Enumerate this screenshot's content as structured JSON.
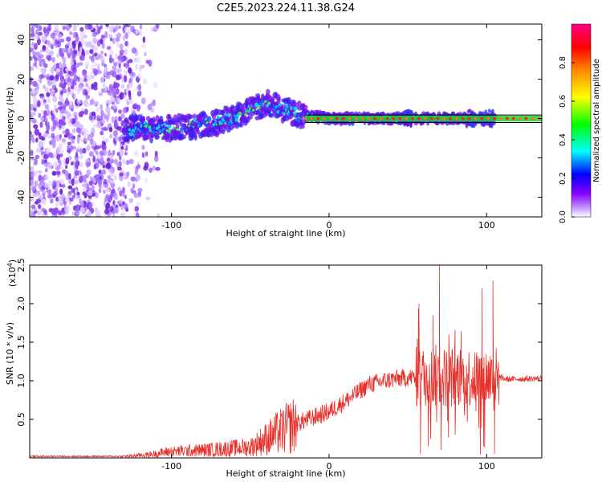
{
  "figure": {
    "title": "C2E5.2023.224.11.38.G24"
  },
  "chart_data": [
    {
      "type": "heatmap",
      "xlabel": "Height of straight line (km)",
      "ylabel": "Frequency (Hz)",
      "xlim": [
        -190,
        135
      ],
      "ylim": [
        -50,
        48
      ],
      "x_ticks": [
        "-100",
        "0",
        "100"
      ],
      "x_tick_values": [
        -100,
        0,
        100
      ],
      "y_ticks": [
        "-40",
        "-20",
        "0",
        "20",
        "40"
      ],
      "y_tick_values": [
        -40,
        -20,
        0,
        20,
        40
      ],
      "colorbar": {
        "label": "Normalized spectral amplitude",
        "range": [
          0,
          1
        ],
        "ticks": [
          "0.0",
          "0.2",
          "0.4",
          "0.6",
          "0.8"
        ],
        "tick_values": [
          0.0,
          0.2,
          0.4,
          0.6,
          0.8
        ],
        "colors": [
          "#ffffff",
          "#8800ff",
          "#0000ff",
          "#00ffff",
          "#00ff00",
          "#ffff00",
          "#ff8800",
          "#ff0000",
          "#ff0088"
        ]
      },
      "features": {
        "noise_region_x": [
          -190,
          -120
        ],
        "ridge_points": [
          [
            -130,
            -5
          ],
          [
            -100,
            -5
          ],
          [
            -70,
            -2
          ],
          [
            -40,
            8
          ],
          [
            -20,
            2
          ],
          [
            0,
            0
          ],
          [
            50,
            0
          ],
          [
            100,
            0
          ],
          [
            135,
            0
          ]
        ],
        "green_line_y_range": [
          -1.5,
          1.5
        ],
        "black_line_y": [
          1.8,
          -2.0
        ],
        "strong_signal_x": [
          -15,
          135
        ]
      }
    },
    {
      "type": "line",
      "xlabel": "Height of straight line (km)",
      "ylabel": "SNR (10 * v/v)",
      "y_multiplier": "(x10",
      "y_multiplier_exp": "4",
      "y_multiplier_close": ")",
      "xlim": [
        -190,
        135
      ],
      "ylim": [
        0,
        2.5
      ],
      "x_ticks": [
        "-100",
        "0",
        "100"
      ],
      "x_tick_values": [
        -100,
        0,
        100
      ],
      "y_ticks": [
        "0.5",
        "1.0",
        "1.5",
        "2.0",
        "2.5"
      ],
      "y_tick_values": [
        0.5,
        1.0,
        1.5,
        2.0,
        2.5
      ],
      "color": "#e8302a",
      "envelope": [
        {
          "x": -190,
          "y": 0.02
        },
        {
          "x": -130,
          "y": 0.02
        },
        {
          "x": -115,
          "y": 0.04
        },
        {
          "x": -102,
          "y": 0.08
        },
        {
          "x": -80,
          "y": 0.1
        },
        {
          "x": -50,
          "y": 0.14
        },
        {
          "x": -35,
          "y": 0.3
        },
        {
          "x": -20,
          "y": 0.45
        },
        {
          "x": 0,
          "y": 0.6
        },
        {
          "x": 15,
          "y": 0.8
        },
        {
          "x": 25,
          "y": 0.95
        },
        {
          "x": 40,
          "y": 1.02
        },
        {
          "x": 55,
          "y": 1.05
        },
        {
          "x": 85,
          "y": 1.05
        },
        {
          "x": 108,
          "y": 1.05
        },
        {
          "x": 112,
          "y": 1.02
        },
        {
          "x": 135,
          "y": 1.03
        }
      ],
      "spikes": [
        {
          "x": 57,
          "y": 2.0
        },
        {
          "x": 58,
          "y": 0.05
        },
        {
          "x": 66,
          "y": 1.85
        },
        {
          "x": 70,
          "y": 2.5
        },
        {
          "x": 71,
          "y": 0.1
        },
        {
          "x": 76,
          "y": 1.6
        },
        {
          "x": 80,
          "y": 0.3
        },
        {
          "x": 83,
          "y": 1.2
        },
        {
          "x": 97,
          "y": 2.2
        },
        {
          "x": 98,
          "y": 0.15
        },
        {
          "x": 104,
          "y": 2.3
        },
        {
          "x": 105,
          "y": 0.05
        }
      ]
    }
  ]
}
